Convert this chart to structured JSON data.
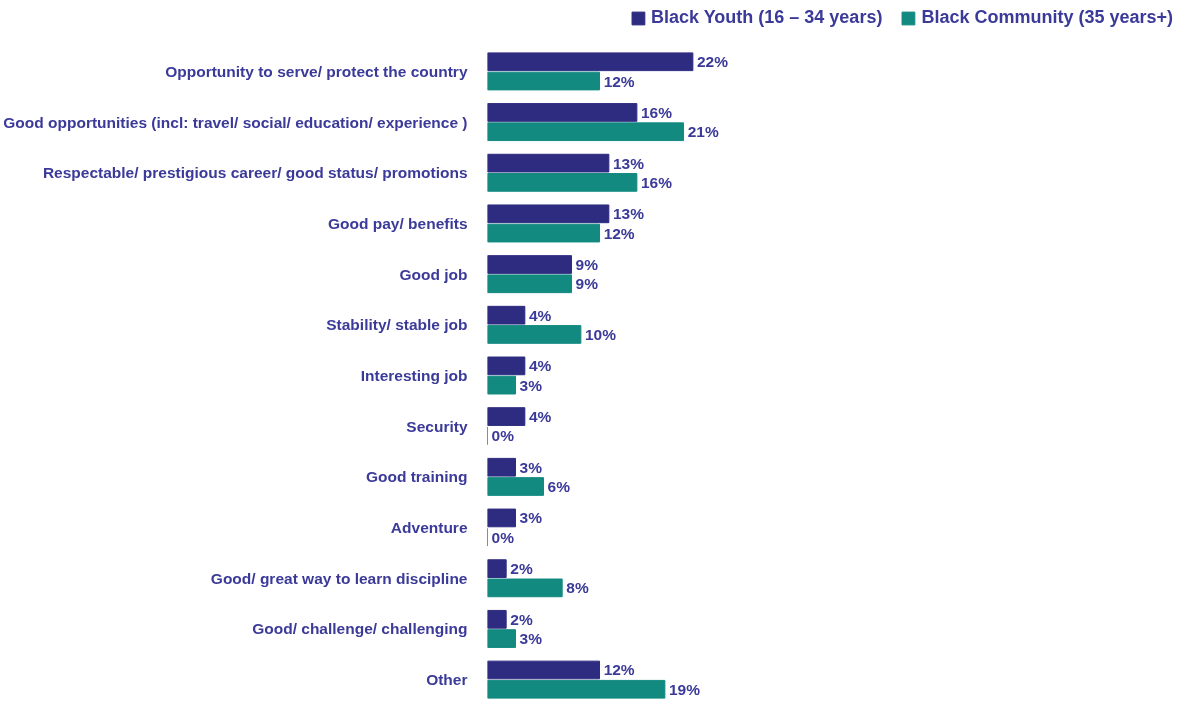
{
  "chart_data": {
    "type": "bar",
    "orientation": "horizontal",
    "legend": "top",
    "grid": false,
    "categories": [
      "Opportunity to serve/ protect the country",
      "Good opportunities (incl: travel/ social/ education/ experience )",
      "Respectable/ prestigious career/ good status/ promotions",
      "Good pay/ benefits",
      "Good job",
      "Stability/ stable job",
      "Interesting job",
      "Security",
      "Good training",
      "Adventure",
      "Good/ great way to learn discipline",
      "Good/ challenge/ challenging",
      "Other"
    ],
    "series": [
      {
        "name": "Black Youth (16 – 34 years)",
        "color": "#2e2c80",
        "values": [
          22,
          16,
          13,
          13,
          9,
          4,
          4,
          4,
          3,
          3,
          2,
          2,
          12
        ],
        "value_labels": [
          "22%",
          "16%",
          "13%",
          "13%",
          "9%",
          "4%",
          "4%",
          "4%",
          "3%",
          "3%",
          "2%",
          "2%",
          "12%"
        ]
      },
      {
        "name": "Black Community (35 years+)",
        "color": "#138a80",
        "values": [
          12,
          21,
          16,
          12,
          9,
          10,
          3,
          0,
          6,
          0,
          8,
          3,
          19
        ],
        "value_labels": [
          "12%",
          "21%",
          "16%",
          "12%",
          "9%",
          "10%",
          "3%",
          "0%",
          "6%",
          "0%",
          "8%",
          "3%",
          "19%"
        ]
      }
    ]
  }
}
